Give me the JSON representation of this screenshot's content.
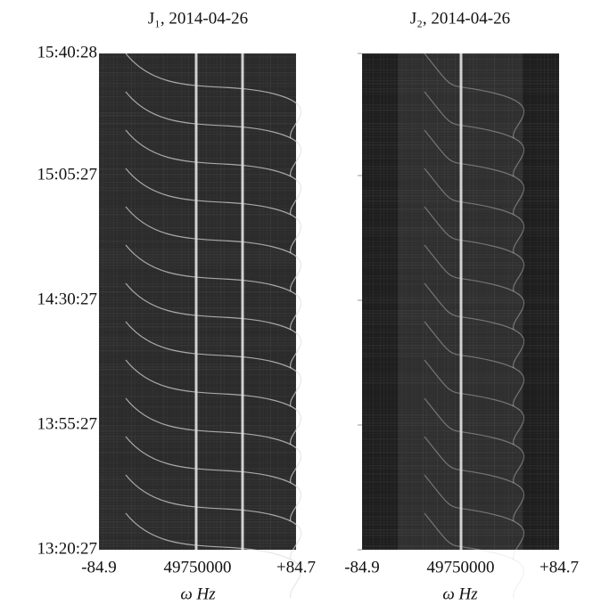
{
  "chart_data": [
    {
      "type": "spectrogram",
      "title": "J₁, 2014-04-26",
      "y_tick_labels": [
        "15:40:28",
        "15:05:27",
        "14:30:27",
        "13:55:27",
        "13:20:27"
      ],
      "x_tick_labels": [
        "-84.9",
        "49750000",
        "+84.7"
      ],
      "x_label": "ω Hz"
    },
    {
      "type": "spectrogram",
      "title": "J₂, 2014-04-26",
      "x_tick_labels": [
        "-84.9",
        "49750000",
        "+84.7"
      ],
      "x_label": "ω Hz"
    }
  ]
}
